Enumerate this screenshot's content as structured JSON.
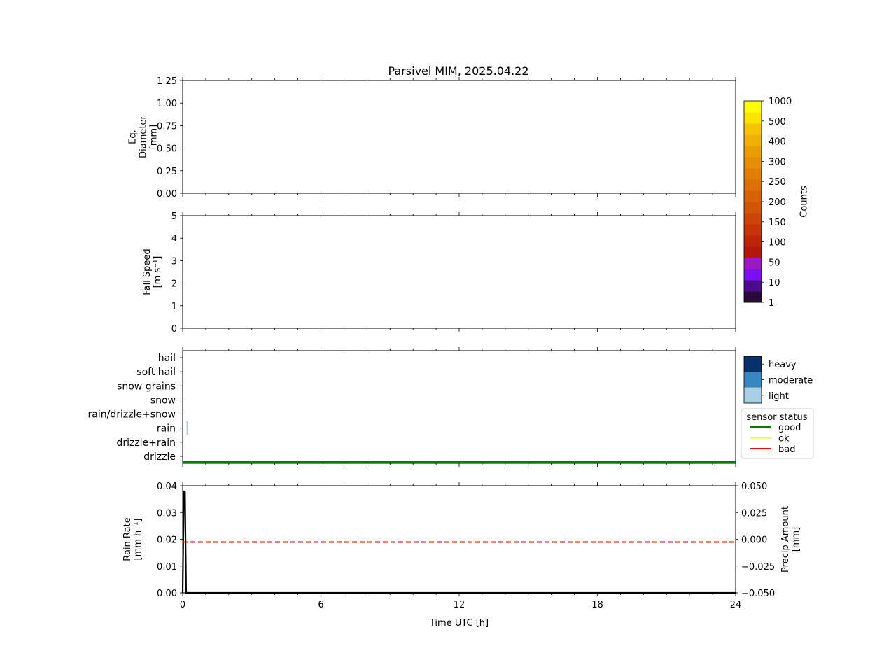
{
  "title": "Parsivel MIM, 2025.04.22",
  "chart_data": [
    {
      "type": "heatmap",
      "ylabel_lines": [
        "Eq.",
        "Diameter",
        "[mm]"
      ],
      "ylim": [
        0,
        1.25
      ],
      "yticks": [
        "0.00",
        "0.25",
        "0.50",
        "0.75",
        "1.00",
        "1.25"
      ],
      "xlim": [
        0,
        24
      ],
      "values": []
    },
    {
      "type": "heatmap",
      "ylabel_lines": [
        "Fall Speed",
        "[m s⁻¹]"
      ],
      "ylim": [
        0,
        5
      ],
      "yticks": [
        "0",
        "1",
        "2",
        "3",
        "4",
        "5"
      ],
      "xlim": [
        0,
        24
      ],
      "values": []
    },
    {
      "type": "scatter",
      "categories": [
        "drizzle",
        "drizzle+rain",
        "rain",
        "rain/drizzle+snow",
        "snow",
        "snow grains",
        "soft hail",
        "hail"
      ],
      "xlim": [
        0,
        24
      ],
      "events": [
        {
          "x": 0.1,
          "category": "rain",
          "intensity": "light"
        }
      ],
      "sensor_status": [
        {
          "x0": 0,
          "x1": 24,
          "status": "good"
        }
      ]
    },
    {
      "type": "line",
      "ylabel_lines": [
        "Rain Rate",
        "[mm h⁻¹]"
      ],
      "ylim": [
        0,
        0.04
      ],
      "yticks": [
        "0.00",
        "0.01",
        "0.02",
        "0.03",
        "0.04"
      ],
      "y2label_lines": [
        "Precip Amount",
        "[mm]"
      ],
      "y2lim": [
        -0.05,
        0.05
      ],
      "y2ticks": [
        "−0.050",
        "−0.025",
        "0.000",
        "0.025",
        "0.050"
      ],
      "xlim": [
        0,
        24
      ],
      "xticks": [
        "0",
        "6",
        "12",
        "18",
        "24"
      ],
      "xlabel": "Time UTC [h]",
      "series": [
        {
          "x": [
            0,
            0.05,
            0.1,
            0.15,
            24
          ],
          "values": [
            0,
            0.04,
            0.04,
            0,
            0
          ],
          "color": "#000000",
          "style": "solid"
        },
        {
          "x": [
            0,
            24
          ],
          "values": [
            0.0,
            0.0
          ],
          "axis": "y2",
          "color": "#ff0000",
          "style": "dashed"
        }
      ]
    }
  ],
  "colorbar": {
    "label": "Counts",
    "ticks": [
      "1",
      "10",
      "50",
      "100",
      "150",
      "200",
      "250",
      "300",
      "400",
      "500",
      "1000"
    ],
    "colors": [
      "#2a0a36",
      "#4c0a8c",
      "#7d0ff7",
      "#9a19c0",
      "#b3180a",
      "#be2406",
      "#c63407",
      "#cc4406",
      "#d25406",
      "#d86106",
      "#dd7006",
      "#e17e06",
      "#e68e05",
      "#ea9e04",
      "#f0b004",
      "#f5c502",
      "#fde300",
      "#ffff00"
    ]
  },
  "intensity_legend": {
    "levels": [
      "light",
      "moderate",
      "heavy"
    ],
    "colors": [
      "#a9cfe5",
      "#3787c0",
      "#08306b"
    ]
  },
  "status_legend": {
    "title": "sensor status",
    "items": [
      {
        "label": "good",
        "color": "#008000"
      },
      {
        "label": "ok",
        "color": "#ffff00"
      },
      {
        "label": "bad",
        "color": "#ff0000"
      }
    ]
  }
}
